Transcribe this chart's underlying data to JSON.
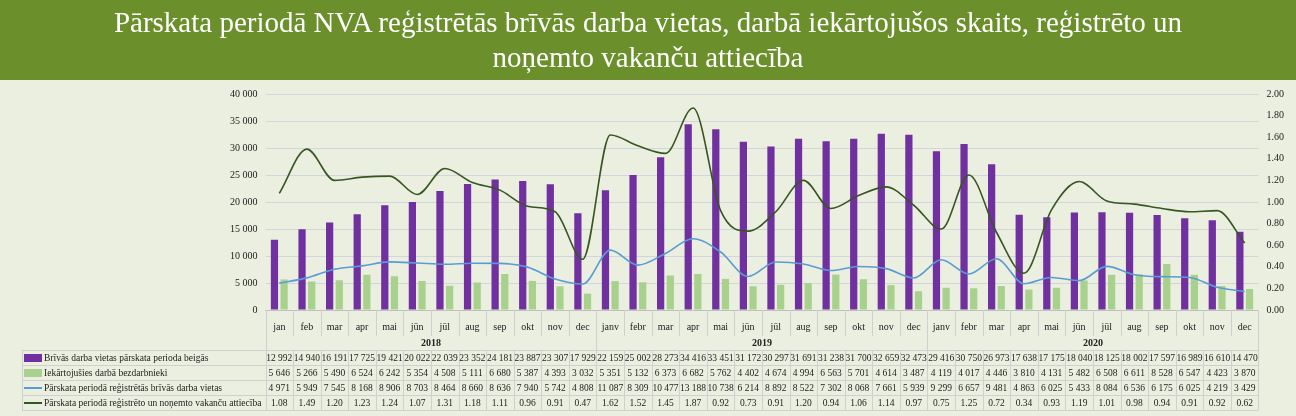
{
  "chart_data": {
    "type": "bar",
    "title": "Pārskata periodā NVA reģistrētās brīvās darba vietas, darbā iekārtojušos skaits, reģistrēto un noņemto vakanču attiecība",
    "categories": [
      "jan",
      "feb",
      "mar",
      "apr",
      "mai",
      "jūn",
      "jūl",
      "aug",
      "sep",
      "okt",
      "nov",
      "dec",
      "janv",
      "febr",
      "mar",
      "apr",
      "mai",
      "jūn",
      "jūl",
      "aug",
      "sep",
      "okt",
      "nov",
      "dec",
      "janv",
      "febr",
      "mar",
      "apr",
      "mai",
      "jūn",
      "jūl",
      "aug",
      "sep",
      "okt",
      "nov",
      "dec"
    ],
    "annotations": [
      "2018",
      "2019",
      "2020"
    ],
    "series": [
      {
        "name": "Brīvās darba vietas pārskata perioda beigās",
        "color": "#7030a0",
        "values": [
          12992,
          14940,
          16191,
          17725,
          19421,
          20022,
          22039,
          23352,
          24181,
          23887,
          23307,
          17929,
          22159,
          25002,
          28273,
          34416,
          33451,
          31172,
          30297,
          31691,
          31238,
          31700,
          32659,
          32473,
          29416,
          30750,
          26973,
          17638,
          17175,
          18040,
          18125,
          18002,
          17597,
          16989,
          16610,
          14470
        ]
      },
      {
        "name": "Iekārtojušies darbā bezdarbnieki",
        "color": "#a9d18e",
        "values": [
          5646,
          5266,
          5490,
          6524,
          6242,
          5354,
          4508,
          5111,
          6680,
          5387,
          4393,
          3032,
          5351,
          5132,
          6373,
          6682,
          5762,
          4402,
          4674,
          4994,
          6563,
          5701,
          4614,
          3487,
          4119,
          4017,
          4446,
          3810,
          4131,
          5482,
          6508,
          6611,
          8528,
          6547,
          4423,
          3870
        ]
      },
      {
        "name": "Pārskata periodā reģistrētās brīvās darba vietas",
        "color": "#5b9bd5",
        "type": "line",
        "values": [
          4971,
          5949,
          7545,
          8168,
          8906,
          8703,
          8464,
          8660,
          8636,
          7940,
          5742,
          4808,
          11087,
          8309,
          10477,
          13188,
          10738,
          6214,
          8892,
          8522,
          7302,
          8068,
          7661,
          5939,
          9299,
          6657,
          9481,
          4863,
          6025,
          5433,
          8084,
          6536,
          6175,
          6025,
          4219,
          3429
        ]
      },
      {
        "name": "Pārskata periodā reģistrēto un noņemto vakanču attiecība",
        "color": "#375623",
        "type": "line",
        "axis": "y2",
        "value_labels": [
          "1.08",
          "1.49",
          "1.20",
          "1.23",
          "1.24",
          "1.07",
          "1.31",
          "1.18",
          "1.11",
          "0.96",
          "0.91",
          "0.47",
          "1.62",
          "1.52",
          "1.45",
          "1.87",
          "0.92",
          "0.73",
          "0.91",
          "1.20",
          "0.94",
          "1.06",
          "1.14",
          "0.97",
          "0.75",
          "1.25",
          "0.72",
          "0.34",
          "0.93",
          "1.19",
          "1.01",
          "0.98",
          "0.94",
          "0.91",
          "0.92",
          "0.62"
        ],
        "values": [
          1.08,
          1.49,
          1.2,
          1.23,
          1.24,
          1.07,
          1.31,
          1.18,
          1.11,
          0.96,
          0.91,
          0.47,
          1.62,
          1.52,
          1.45,
          1.87,
          0.92,
          0.73,
          0.91,
          1.2,
          0.94,
          1.06,
          1.14,
          0.97,
          0.75,
          1.25,
          0.72,
          0.34,
          0.93,
          1.19,
          1.01,
          0.98,
          0.94,
          0.91,
          0.92,
          0.62
        ]
      }
    ],
    "ylim": [
      0,
      40000
    ],
    "yticks": [
      {
        "value": 0,
        "label": "0"
      },
      {
        "value": 5000,
        "label": "5 000"
      },
      {
        "value": 10000,
        "label": "10 000"
      },
      {
        "value": 15000,
        "label": "15 000"
      },
      {
        "value": 20000,
        "label": "20 000"
      },
      {
        "value": 25000,
        "label": "25 000"
      },
      {
        "value": 30000,
        "label": "30 000"
      },
      {
        "value": 35000,
        "label": "35 000"
      },
      {
        "value": 40000,
        "label": "40 000"
      }
    ],
    "y2lim": [
      0,
      2
    ],
    "y2ticks": [
      {
        "value": 0,
        "label": "0.00"
      },
      {
        "value": 0.2,
        "label": "0.20"
      },
      {
        "value": 0.4,
        "label": "0.40"
      },
      {
        "value": 0.6,
        "label": "0.60"
      },
      {
        "value": 0.8,
        "label": "0.80"
      },
      {
        "value": 1,
        "label": "1.00"
      },
      {
        "value": 1.2,
        "label": "1.20"
      },
      {
        "value": 1.4,
        "label": "1.40"
      },
      {
        "value": 1.6,
        "label": "1.60"
      },
      {
        "value": 1.8,
        "label": "1.80"
      },
      {
        "value": 2,
        "label": "2.00"
      }
    ],
    "grid": "y",
    "legend": "bottom",
    "marker": "none",
    "data_labels": true
  }
}
